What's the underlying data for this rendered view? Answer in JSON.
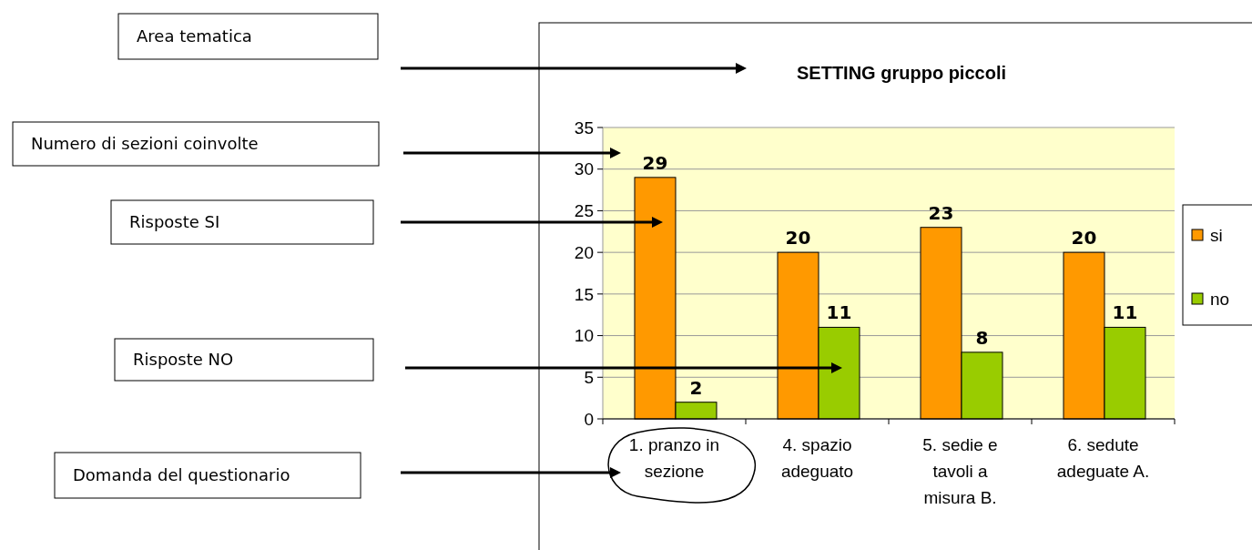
{
  "chart_data": {
    "type": "bar",
    "title": "SETTING gruppo piccoli",
    "categories": [
      "1. pranzo in sezione",
      "4. spazio adeguato",
      "5. sedie e tavoli a misura B.",
      "6. sedute adeguate A."
    ],
    "series": [
      {
        "name": "si",
        "color": "#ff9900",
        "values": [
          29,
          20,
          23,
          20
        ]
      },
      {
        "name": "no",
        "color": "#99cc00",
        "values": [
          2,
          11,
          8,
          11
        ]
      }
    ],
    "ylim": [
      0,
      35
    ],
    "yticks": [
      0,
      5,
      10,
      15,
      20,
      25,
      30,
      35
    ],
    "grid": "y",
    "legend": "right",
    "data_labels": true,
    "annotations": [
      "Area tematica",
      "Numero di sezioni coinvolte",
      "Risposte SI",
      "Risposte NO",
      "Domanda del questionario"
    ]
  }
}
